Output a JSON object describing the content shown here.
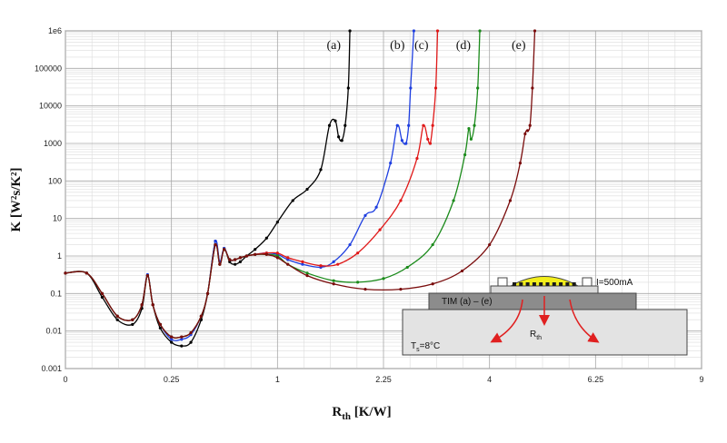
{
  "chart_data": {
    "type": "line",
    "title": "",
    "xlabel_main": "R",
    "xlabel_sub": "th",
    "xlabel_unit": " [K/W]",
    "ylabel": "K [W²s/K²]",
    "y_scale": "log",
    "ylim": [
      0.001,
      1000000
    ],
    "x_scale": "sqrt",
    "xlim": [
      0,
      9
    ],
    "grid": true,
    "x_ticks": [
      "0",
      "0.25",
      "1",
      "2.25",
      "4",
      "6.25",
      "9"
    ],
    "y_ticks": [
      "0.001",
      "0.01",
      "0.1",
      "1",
      "10",
      "100",
      "1000",
      "10000",
      "100000",
      "1e6"
    ],
    "series": [
      {
        "name": "(a)",
        "color": "#000000",
        "x": [
          0,
          0.01,
          0.03,
          0.06,
          0.1,
          0.13,
          0.15,
          0.17,
          0.2,
          0.25,
          0.3,
          0.35,
          0.41,
          0.45,
          0.5,
          0.53,
          0.56,
          0.6,
          0.64,
          0.68,
          0.73,
          0.8,
          0.9,
          1.0,
          1.15,
          1.3,
          1.45,
          1.55,
          1.62,
          1.66,
          1.7,
          1.74,
          1.78,
          1.8
        ],
        "y": [
          0.35,
          0.35,
          0.08,
          0.02,
          0.015,
          0.04,
          0.3,
          0.05,
          0.012,
          0.005,
          0.004,
          0.005,
          0.02,
          0.1,
          2.5,
          0.6,
          1.6,
          0.7,
          0.6,
          0.7,
          1.0,
          1.5,
          3,
          8,
          30,
          60,
          200,
          3000,
          4000,
          1500,
          1200,
          3000,
          30000,
          1000000
        ]
      },
      {
        "name": "(b)",
        "color": "#1f3fe0",
        "x": [
          0,
          0.01,
          0.03,
          0.06,
          0.1,
          0.13,
          0.15,
          0.17,
          0.2,
          0.25,
          0.3,
          0.35,
          0.41,
          0.45,
          0.5,
          0.53,
          0.56,
          0.6,
          0.64,
          0.68,
          0.73,
          0.8,
          0.9,
          1.0,
          1.1,
          1.25,
          1.45,
          1.6,
          1.8,
          2.0,
          2.15,
          2.35,
          2.45,
          2.52,
          2.58,
          2.62,
          2.65,
          2.7
        ],
        "y": [
          0.35,
          0.35,
          0.1,
          0.025,
          0.02,
          0.05,
          0.32,
          0.05,
          0.015,
          0.006,
          0.006,
          0.008,
          0.025,
          0.1,
          2.5,
          0.7,
          1.6,
          0.8,
          0.8,
          0.9,
          1.0,
          1.1,
          1.2,
          1.1,
          0.8,
          0.6,
          0.5,
          0.7,
          2,
          12,
          20,
          300,
          3000,
          1200,
          1000,
          3000,
          30000,
          1000000
        ]
      },
      {
        "name": "(c)",
        "color": "#e01818",
        "x": [
          0,
          0.01,
          0.03,
          0.06,
          0.1,
          0.13,
          0.15,
          0.17,
          0.2,
          0.25,
          0.3,
          0.35,
          0.41,
          0.45,
          0.5,
          0.53,
          0.56,
          0.6,
          0.64,
          0.68,
          0.73,
          0.8,
          0.9,
          1.0,
          1.1,
          1.25,
          1.45,
          1.65,
          1.9,
          2.2,
          2.5,
          2.75,
          2.85,
          2.92,
          2.96,
          3.0,
          3.05,
          3.08
        ],
        "y": [
          0.35,
          0.35,
          0.1,
          0.025,
          0.02,
          0.05,
          0.3,
          0.05,
          0.015,
          0.007,
          0.007,
          0.009,
          0.025,
          0.1,
          2.0,
          0.6,
          1.5,
          0.8,
          0.8,
          0.9,
          1.0,
          1.1,
          1.2,
          1.2,
          0.9,
          0.7,
          0.55,
          0.6,
          1.2,
          5,
          30,
          400,
          3000,
          1300,
          1000,
          3000,
          30000,
          1000000
        ]
      },
      {
        "name": "(d)",
        "color": "#1a8a1a",
        "x": [
          0,
          0.01,
          0.03,
          0.06,
          0.1,
          0.13,
          0.15,
          0.17,
          0.2,
          0.25,
          0.3,
          0.35,
          0.41,
          0.45,
          0.5,
          0.53,
          0.56,
          0.6,
          0.64,
          0.68,
          0.73,
          0.8,
          0.9,
          1.0,
          1.1,
          1.3,
          1.6,
          1.9,
          2.25,
          2.6,
          3.0,
          3.35,
          3.55,
          3.62,
          3.66,
          3.72,
          3.78,
          3.82
        ],
        "y": [
          0.35,
          0.35,
          0.1,
          0.025,
          0.02,
          0.05,
          0.3,
          0.05,
          0.015,
          0.007,
          0.007,
          0.009,
          0.025,
          0.1,
          2.0,
          0.6,
          1.5,
          0.8,
          0.8,
          0.9,
          1.0,
          1.1,
          1.1,
          1.0,
          0.6,
          0.35,
          0.22,
          0.2,
          0.25,
          0.5,
          2,
          30,
          500,
          2500,
          1300,
          3000,
          30000,
          1000000
        ]
      },
      {
        "name": "(e)",
        "color": "#7a0c0c",
        "x": [
          0,
          0.01,
          0.03,
          0.06,
          0.1,
          0.13,
          0.15,
          0.17,
          0.2,
          0.25,
          0.3,
          0.35,
          0.41,
          0.45,
          0.5,
          0.53,
          0.56,
          0.6,
          0.64,
          0.68,
          0.73,
          0.8,
          0.9,
          1.0,
          1.1,
          1.3,
          1.6,
          2.0,
          2.5,
          3.0,
          3.5,
          4.0,
          4.4,
          4.6,
          4.7,
          4.75,
          4.8,
          4.85,
          4.9
        ],
        "y": [
          0.35,
          0.35,
          0.1,
          0.025,
          0.02,
          0.05,
          0.3,
          0.05,
          0.015,
          0.007,
          0.007,
          0.009,
          0.025,
          0.1,
          2.0,
          0.6,
          1.5,
          0.8,
          0.8,
          0.9,
          1.0,
          1.1,
          1.1,
          0.9,
          0.6,
          0.3,
          0.18,
          0.13,
          0.13,
          0.18,
          0.4,
          2,
          30,
          300,
          1800,
          2200,
          3000,
          30000,
          1000000
        ]
      }
    ],
    "inset": {
      "current_label": "I=500mA",
      "tim_label": "TIM (a) – (e)",
      "rth_main": "R",
      "rth_sub": "th",
      "ts_main": "T",
      "ts_sub": "s",
      "ts_value": "=8°C",
      "colors": {
        "lens": "#f2ee1a",
        "chip": "#1a1a1a",
        "tim": "#8c8c8c",
        "heatsink": "#e3e3e3",
        "arrow": "#e02020"
      }
    }
  }
}
